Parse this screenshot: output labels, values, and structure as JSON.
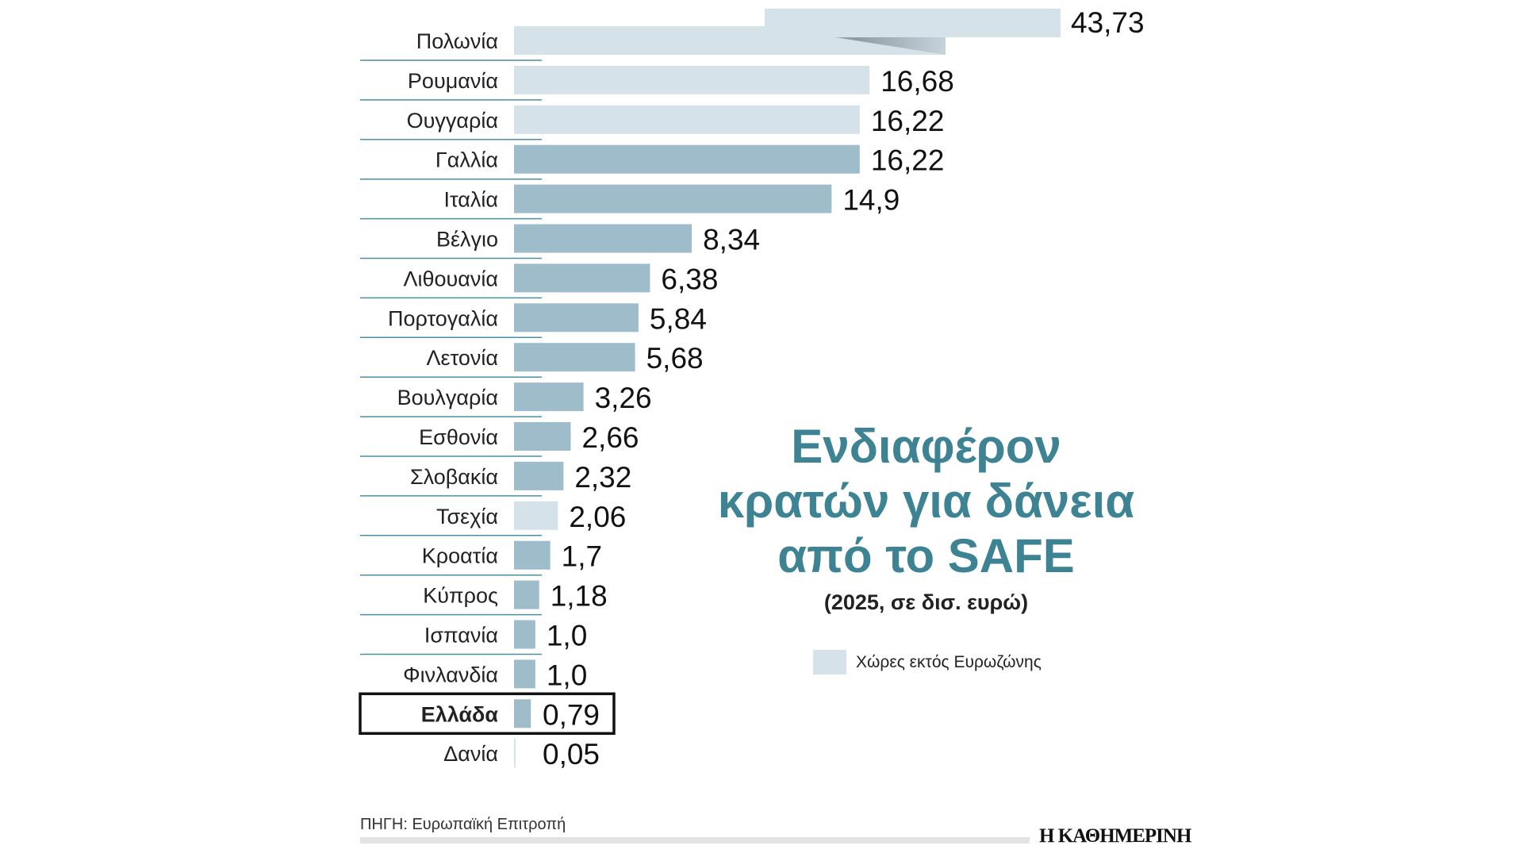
{
  "chart_data": {
    "type": "bar",
    "orientation": "horizontal",
    "title": "Ενδιαφέρον κρατών για δάνεια από το SAFE",
    "title_lines": [
      "Ενδιαφέρον",
      "κρατών για δάνεια",
      "από το SAFE"
    ],
    "subtitle": "(2025, σε δισ. ευρώ)",
    "categories": [
      "Πολωνία",
      "Ρουμανία",
      "Ουγγαρία",
      "Γαλλία",
      "Ιταλία",
      "Βέλγιο",
      "Λιθουανία",
      "Πορτογαλία",
      "Λετονία",
      "Βουλγαρία",
      "Εσθονία",
      "Σλοβακία",
      "Τσεχία",
      "Κροατία",
      "Κύπρος",
      "Ισπανία",
      "Φινλανδία",
      "Ελλάδα",
      "Δανία"
    ],
    "values": [
      43.73,
      16.68,
      16.22,
      16.22,
      14.9,
      8.34,
      6.38,
      5.84,
      5.68,
      3.26,
      2.66,
      2.32,
      2.06,
      1.7,
      1.18,
      1.0,
      1.0,
      0.79,
      0.05
    ],
    "value_labels": [
      "43,73",
      "16,68",
      "16,22",
      "16,22",
      "14,9",
      "8,34",
      "6,38",
      "5,84",
      "5,68",
      "3,26",
      "2,66",
      "2,32",
      "2,06",
      "1,7",
      "1,18",
      "1,0",
      "1,0",
      "0,79",
      "0,05"
    ],
    "non_eurozone": [
      true,
      true,
      true,
      false,
      false,
      false,
      false,
      false,
      false,
      false,
      false,
      false,
      true,
      false,
      false,
      false,
      false,
      false,
      true
    ],
    "highlight": "Ελλάδα",
    "legend": [
      {
        "label": "Χώρες εκτός Ευρωζώνης",
        "color": "#d6e2ea"
      }
    ],
    "colors": {
      "eurozone": "#9fbccb",
      "non_eurozone": "#d6e2ea",
      "title": "#3e8393",
      "separator": "#4a8fa3"
    }
  },
  "footer": {
    "source": "ΠΗΓΗ: Ευρωπαϊκή Επιτροπή",
    "logo": "Η ΚΑΘΗΜΕΡΙΝΗ"
  }
}
